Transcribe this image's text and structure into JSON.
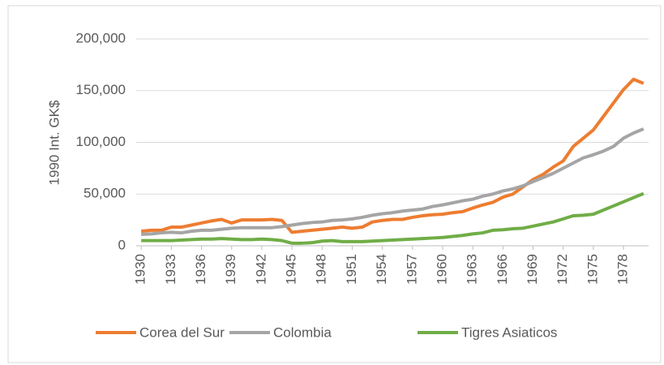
{
  "chart_data": {
    "type": "line",
    "y_label": "1990 Int. GK$",
    "x": [
      1930,
      1931,
      1932,
      1933,
      1934,
      1935,
      1936,
      1937,
      1938,
      1939,
      1940,
      1941,
      1942,
      1943,
      1944,
      1945,
      1946,
      1947,
      1948,
      1949,
      1950,
      1951,
      1952,
      1953,
      1954,
      1955,
      1956,
      1957,
      1958,
      1959,
      1960,
      1961,
      1962,
      1963,
      1964,
      1965,
      1966,
      1967,
      1968,
      1969,
      1970,
      1971,
      1972,
      1973,
      1974,
      1975,
      1976,
      1977,
      1978,
      1979,
      1980
    ],
    "series": [
      {
        "name": "Corea del Sur",
        "color": "#ed7d31",
        "values": [
          14000,
          15000,
          15000,
          18000,
          18000,
          20000,
          22000,
          24000,
          25500,
          22000,
          25000,
          25000,
          25000,
          25500,
          24500,
          13000,
          14000,
          15000,
          16000,
          17000,
          18000,
          17000,
          18000,
          23000,
          24500,
          25500,
          25500,
          27500,
          29000,
          30000,
          30500,
          32000,
          33000,
          36500,
          39500,
          42000,
          47000,
          50000,
          57000,
          64000,
          69000,
          76000,
          82000,
          96000,
          104000,
          112000,
          125000,
          138000,
          151000,
          161000,
          157000
        ]
      },
      {
        "name": "Colombia",
        "color": "#a5a5a5",
        "values": [
          11000,
          11500,
          12500,
          13000,
          12500,
          14000,
          15000,
          15000,
          16000,
          17000,
          17500,
          17500,
          17500,
          17500,
          18500,
          20000,
          21500,
          22500,
          23000,
          24500,
          25000,
          26000,
          27500,
          29500,
          31000,
          32000,
          33500,
          34500,
          35500,
          38000,
          39500,
          41500,
          43500,
          45000,
          48000,
          50000,
          53000,
          55000,
          58000,
          62000,
          66000,
          70000,
          75000,
          80000,
          85000,
          88000,
          91500,
          96000,
          104000,
          109000,
          113000
        ]
      },
      {
        "name": "Tigres Asiaticos",
        "color": "#70ad47",
        "values": [
          5000,
          5000,
          5000,
          5000,
          5500,
          6000,
          6500,
          6500,
          7000,
          6500,
          6000,
          6000,
          6500,
          6000,
          5000,
          2500,
          2500,
          3000,
          4500,
          5000,
          4000,
          4000,
          4000,
          4500,
          5000,
          5500,
          6000,
          6500,
          7000,
          7500,
          8000,
          9000,
          10000,
          11500,
          12500,
          15000,
          15500,
          16500,
          17000,
          19000,
          21000,
          23000,
          26000,
          29000,
          29500,
          30500,
          34500,
          38500,
          42500,
          46500,
          50500
        ]
      }
    ],
    "xlim": [
      1929.5,
      1980.5
    ],
    "xticks": [
      1930,
      1933,
      1936,
      1939,
      1942,
      1945,
      1948,
      1951,
      1954,
      1957,
      1960,
      1963,
      1966,
      1969,
      1972,
      1975,
      1978
    ],
    "ylim": [
      0,
      200000
    ],
    "yticks": [
      0,
      {
        "value": 50000,
        "label": "50,000"
      },
      {
        "value": 100000,
        "label": "100,000"
      },
      {
        "value": 150000,
        "label": "150,000"
      },
      {
        "value": 200000,
        "label": "200,000"
      }
    ],
    "grid": true,
    "legend": "bottom"
  }
}
